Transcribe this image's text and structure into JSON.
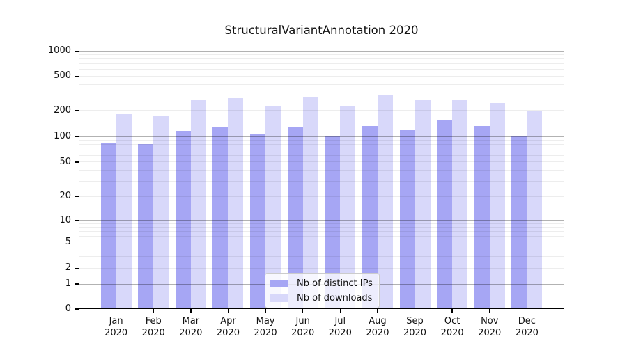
{
  "title": "StructuralVariantAnnotation 2020",
  "chart_data": {
    "type": "bar",
    "title": "StructuralVariantAnnotation 2020",
    "months": [
      "Jan",
      "Feb",
      "Mar",
      "Apr",
      "May",
      "Jun",
      "Jul",
      "Aug",
      "Sep",
      "Oct",
      "Nov",
      "Dec"
    ],
    "year": "2020",
    "series": [
      {
        "name": "Nb of distinct IPs",
        "color": "#a6a6f4",
        "values": [
          84,
          81,
          116,
          131,
          109,
          129,
          100,
          132,
          119,
          153,
          132,
          101
        ]
      },
      {
        "name": "Nb of downloads",
        "color": "#d8d8fa",
        "values": [
          182,
          173,
          268,
          276,
          225,
          282,
          224,
          298,
          265,
          268,
          244,
          195
        ]
      }
    ],
    "yticks": [
      0,
      1,
      2,
      5,
      10,
      20,
      50,
      100,
      200,
      500,
      1000
    ],
    "yscale": "symlog",
    "ylim": [
      0,
      1250
    ],
    "xlabel": "",
    "ylabel": "",
    "grid": true,
    "legend_position": "lower center"
  },
  "colors": {
    "background": "#ffffff",
    "bar_ips": "#a6a6f4",
    "bar_downloads": "#d8d8fa",
    "grid_major": "#b3b3b3",
    "grid_minor": "#ebebeb",
    "axis": "#000000",
    "text": "#111111",
    "legend_border": "#cccccc"
  }
}
